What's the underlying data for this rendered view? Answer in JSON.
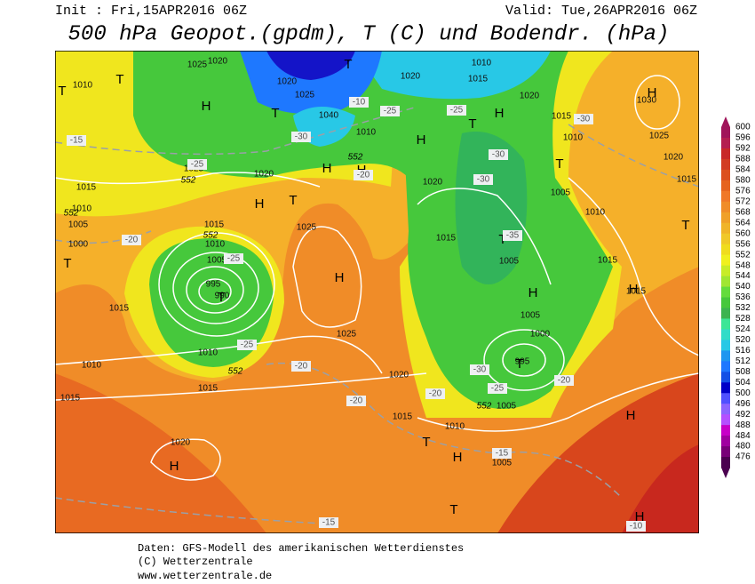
{
  "header": {
    "init": "Init : Fri,15APR2016 06Z",
    "valid": "Valid: Tue,26APR2016 06Z",
    "title": "500 hPa Geopot.(gpdm), T (C) und Bodendr. (hPa)"
  },
  "map": {
    "pressure_labels": [
      "1010",
      "1025",
      "1020",
      "1020",
      "1025",
      "1040",
      "1010",
      "1020",
      "1010",
      "1015",
      "1020",
      "1015",
      "1010",
      "1030",
      "1025",
      "1020",
      "1015",
      "1025",
      "1020",
      "1020",
      "1005",
      "1010",
      "1015",
      "1010",
      "1005",
      "1000",
      "1025",
      "1015",
      "1010",
      "1005",
      "995",
      "990",
      "1015",
      "1010",
      "1025",
      "1020",
      "1015",
      "1010",
      "1015",
      "1020",
      "1015",
      "1010",
      "1005",
      "1005",
      "1005",
      "1000",
      "995",
      "1005",
      "1015",
      "1015",
      "1015"
    ],
    "centers": [
      "T",
      "T",
      "H",
      "T",
      "T",
      "H",
      "T",
      "H",
      "T",
      "H",
      "H",
      "H",
      "H",
      "T",
      "T",
      "T",
      "H",
      "T",
      "H",
      "H",
      "T",
      "T",
      "H",
      "T",
      "H",
      "T",
      "H",
      "H"
    ],
    "temperature_labels": [
      "-15",
      "-25",
      "-20",
      "-25",
      "-25",
      "-20",
      "-20",
      "-20",
      "-30",
      "-25",
      "-20",
      "-25",
      "-20",
      "-30",
      "-25",
      "-30",
      "-30",
      "-30",
      "-35",
      "-15",
      "-15",
      "-10",
      "-10"
    ],
    "contour_labels": [
      "552",
      "552",
      "552",
      "552",
      "552",
      "552"
    ]
  },
  "colorbar": {
    "labels": [
      600,
      596,
      592,
      588,
      584,
      580,
      576,
      572,
      568,
      564,
      560,
      556,
      552,
      548,
      544,
      540,
      536,
      532,
      528,
      524,
      520,
      516,
      512,
      508,
      504,
      500,
      496,
      492,
      488,
      484,
      480,
      476
    ]
  },
  "footer": {
    "source": "Daten: GFS-Modell des amerikanischen Wetterdienstes",
    "copyright": "(C) Wetterzentrale",
    "url": "www.wetterzentrale.de"
  }
}
